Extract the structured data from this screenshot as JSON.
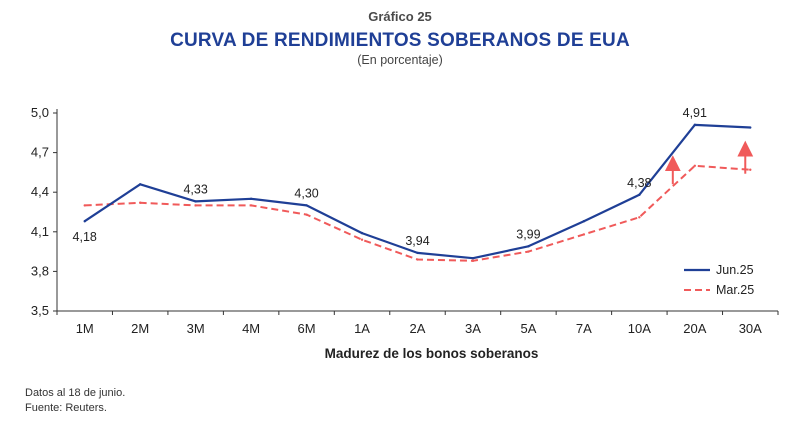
{
  "header": {
    "kicker": "Gráfico 25",
    "title": "CURVA DE RENDIMIENTOS SOBERANOS DE EUA",
    "subtitle": "(En porcentaje)"
  },
  "footer": {
    "note": "Datos al 18 de junio.",
    "source": "Fuente: Reuters."
  },
  "colors": {
    "jun": "#1f3f96",
    "mar": "#f05a5a",
    "arrow": "#f05a5a"
  },
  "chart_data": {
    "type": "line",
    "title": "CURVA DE RENDIMIENTOS SOBERANOS DE EUA",
    "xlabel": "Madurez de los bonos soberanos",
    "ylabel": "",
    "ylim": [
      3.5,
      5.0
    ],
    "yticks": [
      "5,0",
      "4,7",
      "4,4",
      "4,1",
      "3,8",
      "3,5"
    ],
    "ytick_values": [
      5.0,
      4.7,
      4.4,
      4.1,
      3.8,
      3.5
    ],
    "categories": [
      "1M",
      "2M",
      "3M",
      "4M",
      "6M",
      "1A",
      "2A",
      "3A",
      "5A",
      "7A",
      "10A",
      "20A",
      "30A"
    ],
    "legend_position": "bottom-right",
    "grid": false,
    "series": [
      {
        "name": "Jun.25",
        "style": "solid",
        "values": [
          4.18,
          4.46,
          4.33,
          4.35,
          4.3,
          4.09,
          3.94,
          3.9,
          3.99,
          4.18,
          4.38,
          4.91,
          4.89
        ]
      },
      {
        "name": "Mar.25",
        "style": "dashed",
        "values": [
          4.3,
          4.32,
          4.3,
          4.3,
          4.23,
          4.04,
          3.89,
          3.88,
          3.95,
          4.08,
          4.21,
          4.6,
          4.57
        ]
      }
    ],
    "data_labels": [
      {
        "series": 0,
        "index": 0,
        "text": "4,18",
        "pos": "below"
      },
      {
        "series": 0,
        "index": 2,
        "text": "4,33",
        "pos": "above"
      },
      {
        "series": 0,
        "index": 4,
        "text": "4,30",
        "pos": "above"
      },
      {
        "series": 0,
        "index": 6,
        "text": "3,94",
        "pos": "above"
      },
      {
        "series": 0,
        "index": 8,
        "text": "3,99",
        "pos": "above"
      },
      {
        "series": 0,
        "index": 10,
        "text": "4,38",
        "pos": "above"
      },
      {
        "series": 0,
        "index": 11,
        "text": "4,91",
        "pos": "above"
      }
    ],
    "arrows": [
      {
        "index": 11,
        "from": 4.46,
        "to": 4.65
      },
      {
        "index": 12,
        "from": 4.54,
        "to": 4.76
      }
    ]
  }
}
